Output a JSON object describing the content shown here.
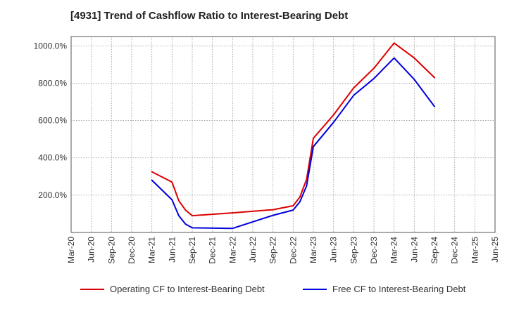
{
  "chart_data": {
    "type": "line",
    "title": "[4931]  Trend of Cashflow Ratio to Interest-Bearing Debt",
    "xlabel": "",
    "ylabel": "",
    "x_ticks": [
      "Mar-20",
      "Jun-20",
      "Sep-20",
      "Dec-20",
      "Mar-21",
      "Jun-21",
      "Sep-21",
      "Dec-21",
      "Mar-22",
      "Jun-22",
      "Sep-22",
      "Dec-22",
      "Mar-23",
      "Jun-23",
      "Sep-23",
      "Dec-23",
      "Mar-24",
      "Jun-24",
      "Sep-24",
      "Dec-24",
      "Mar-25",
      "Jun-25"
    ],
    "y_ticks": [
      "200.0%",
      "400.0%",
      "600.0%",
      "800.0%",
      "1000.0%"
    ],
    "y_tick_values": [
      200,
      400,
      600,
      800,
      1000
    ],
    "ylim": [
      0,
      1050
    ],
    "grid": true,
    "legend_position": "bottom",
    "series": [
      {
        "name": "Operating CF to Interest-Bearing Debt",
        "color": "#dd0000",
        "points": [
          [
            "Mar-21",
            325
          ],
          [
            "Jun-21",
            270
          ],
          [
            "Jul-21",
            170
          ],
          [
            "Aug-21",
            120
          ],
          [
            "Sep-21",
            90
          ],
          [
            "Mar-22",
            105
          ],
          [
            "Sep-22",
            122
          ],
          [
            "Dec-22",
            143
          ],
          [
            "Jan-23",
            190
          ],
          [
            "Feb-23",
            285
          ],
          [
            "Mar-23",
            505
          ],
          [
            "Jun-23",
            630
          ],
          [
            "Sep-23",
            775
          ],
          [
            "Dec-23",
            880
          ],
          [
            "Mar-24",
            1015
          ],
          [
            "Jun-24",
            935
          ],
          [
            "Sep-24",
            830
          ]
        ]
      },
      {
        "name": "Free CF to Interest-Bearing Debt",
        "color": "#0000dd",
        "points": [
          [
            "Mar-21",
            280
          ],
          [
            "Jun-21",
            175
          ],
          [
            "Jul-21",
            90
          ],
          [
            "Aug-21",
            45
          ],
          [
            "Sep-21",
            25
          ],
          [
            "Mar-22",
            22
          ],
          [
            "Sep-22",
            92
          ],
          [
            "Dec-22",
            120
          ],
          [
            "Jan-23",
            165
          ],
          [
            "Feb-23",
            250
          ],
          [
            "Mar-23",
            460
          ],
          [
            "Jun-23",
            590
          ],
          [
            "Sep-23",
            735
          ],
          [
            "Dec-23",
            825
          ],
          [
            "Mar-24",
            935
          ],
          [
            "Jun-24",
            820
          ],
          [
            "Sep-24",
            675
          ]
        ]
      }
    ]
  }
}
